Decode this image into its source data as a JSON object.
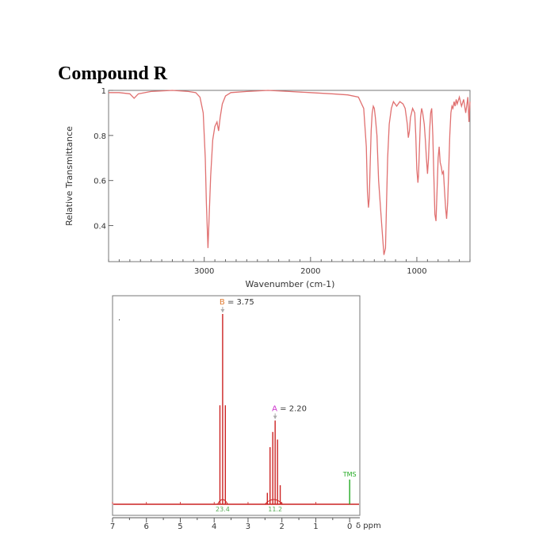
{
  "title": "Compound R",
  "colors": {
    "ir_line": "#e07070",
    "nmr_line": "#cc2222",
    "baseline": "#cc2222",
    "tms": "#22aa22",
    "integral_text": "#55aa55",
    "label_B": "#e07a30",
    "label_A": "#cc33cc",
    "arrow": "#aaaaaa"
  },
  "chart_data": [
    {
      "type": "line",
      "ylabel": "Relative Transmittance",
      "xlabel": "Wavenumber (cm-1)",
      "xlim": [
        3900,
        500
      ],
      "ylim": [
        0.24,
        1.0
      ],
      "x_ticks": [
        3000,
        2000,
        1000
      ],
      "y_ticks": [
        {
          "v": 1.0,
          "label": "1"
        },
        {
          "v": 0.8,
          "label": "0.8"
        },
        {
          "v": 0.6,
          "label": "0.6"
        },
        {
          "v": 0.4,
          "label": "0.4"
        }
      ],
      "series": [
        {
          "x": [
            3900,
            3800,
            3700,
            3660,
            3620,
            3500,
            3300,
            3150,
            3080,
            3040,
            3010,
            2990,
            2980,
            2965,
            2955,
            2940,
            2920,
            2900,
            2880,
            2865,
            2850,
            2830,
            2800,
            2750,
            2600,
            2400,
            2200,
            2000,
            1800,
            1650,
            1550,
            1500,
            1475,
            1465,
            1455,
            1448,
            1440,
            1430,
            1420,
            1410,
            1400,
            1390,
            1375,
            1360,
            1330,
            1310,
            1295,
            1285,
            1275,
            1260,
            1240,
            1220,
            1190,
            1160,
            1130,
            1110,
            1090,
            1080,
            1070,
            1060,
            1040,
            1020,
            1010,
            1000,
            990,
            985,
            975,
            965,
            955,
            945,
            930,
            920,
            910,
            900,
            890,
            880,
            870,
            860,
            850,
            840,
            830,
            820,
            810,
            800,
            790,
            780,
            770,
            760,
            750,
            740,
            730,
            720,
            710,
            700,
            690,
            680,
            670,
            660,
            650,
            640,
            630,
            620,
            600,
            580,
            560,
            540,
            520,
            510,
            500
          ],
          "y": [
            0.99,
            0.99,
            0.985,
            0.965,
            0.985,
            0.995,
            1.0,
            0.995,
            0.99,
            0.97,
            0.9,
            0.7,
            0.5,
            0.3,
            0.42,
            0.62,
            0.78,
            0.84,
            0.86,
            0.82,
            0.88,
            0.94,
            0.975,
            0.99,
            0.995,
            1.0,
            0.995,
            0.99,
            0.985,
            0.98,
            0.97,
            0.92,
            0.75,
            0.55,
            0.48,
            0.52,
            0.65,
            0.82,
            0.9,
            0.93,
            0.92,
            0.88,
            0.8,
            0.6,
            0.4,
            0.27,
            0.3,
            0.5,
            0.7,
            0.85,
            0.92,
            0.95,
            0.93,
            0.95,
            0.94,
            0.92,
            0.85,
            0.79,
            0.82,
            0.88,
            0.92,
            0.9,
            0.8,
            0.65,
            0.59,
            0.62,
            0.75,
            0.88,
            0.92,
            0.9,
            0.85,
            0.78,
            0.7,
            0.63,
            0.7,
            0.82,
            0.9,
            0.92,
            0.8,
            0.62,
            0.45,
            0.42,
            0.55,
            0.7,
            0.75,
            0.68,
            0.66,
            0.63,
            0.64,
            0.56,
            0.48,
            0.43,
            0.5,
            0.65,
            0.8,
            0.9,
            0.93,
            0.92,
            0.95,
            0.93,
            0.96,
            0.94,
            0.97,
            0.93,
            0.96,
            0.9,
            0.97,
            0.86,
            0.95
          ]
        }
      ]
    },
    {
      "type": "line",
      "xlabel": "δ ppm",
      "xlim": [
        7.0,
        -0.3
      ],
      "x_ticks": [
        7,
        6,
        5,
        4,
        3,
        2,
        1,
        0
      ],
      "peaks": [
        {
          "label": "B",
          "shift_text": "= 3.75",
          "shift": 3.75,
          "integral": "23.4",
          "lines": [
            {
              "ppm": 3.83,
              "h": 0.52
            },
            {
              "ppm": 3.75,
              "h": 1.0
            },
            {
              "ppm": 3.67,
              "h": 0.52
            }
          ]
        },
        {
          "label": "A",
          "shift_text": "= 2.20",
          "shift": 2.2,
          "integral": "11.2",
          "lines": [
            {
              "ppm": 2.43,
              "h": 0.06
            },
            {
              "ppm": 2.35,
              "h": 0.3
            },
            {
              "ppm": 2.27,
              "h": 0.38
            },
            {
              "ppm": 2.2,
              "h": 0.44
            },
            {
              "ppm": 2.13,
              "h": 0.34
            },
            {
              "ppm": 2.05,
              "h": 0.1
            }
          ]
        }
      ],
      "reference": {
        "label": "TMS",
        "ppm": 0.0,
        "h": 0.13
      }
    }
  ]
}
